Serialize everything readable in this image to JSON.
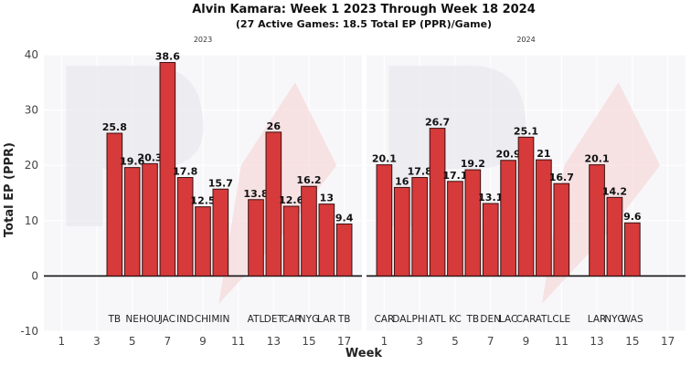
{
  "chart_data": {
    "type": "bar",
    "title": "Alvin Kamara: Week 1 2023 Through Week 18 2024",
    "subtitle": "(27 Active Games: 18.5 Total EP (PPR)/Game)",
    "xlabel": "Week",
    "ylabel": "Total EP (PPR)",
    "ylim": [
      -10,
      40
    ],
    "yticks": [
      -10,
      0,
      10,
      20,
      30,
      40
    ],
    "xlim": [
      0,
      18
    ],
    "xticks": [
      1,
      3,
      5,
      7,
      9,
      11,
      13,
      15,
      17
    ],
    "grid": true,
    "bar_color": "#d63a3a",
    "bar_edge": "#3a1010",
    "panel_bg": "#f7f7fa",
    "panels": [
      {
        "label": "2023",
        "weeks": [
          4,
          5,
          6,
          7,
          8,
          9,
          10,
          12,
          13,
          14,
          15,
          16,
          17
        ],
        "opponents": [
          "TB",
          "NE",
          "HOU",
          "JAC",
          "IND",
          "CHI",
          "MIN",
          "ATL",
          "DET",
          "CAR",
          "NYG",
          "LAR",
          "TB"
        ],
        "values": [
          25.8,
          19.6,
          20.3,
          38.6,
          17.8,
          12.5,
          15.7,
          13.8,
          26,
          12.6,
          16.2,
          13,
          9.4
        ]
      },
      {
        "label": "2024",
        "weeks": [
          1,
          2,
          3,
          4,
          5,
          6,
          7,
          8,
          9,
          10,
          11,
          13,
          14,
          15
        ],
        "opponents": [
          "CAR",
          "DAL",
          "PHI",
          "ATL",
          "KC",
          "TB",
          "DEN",
          "LAC",
          "CAR",
          "ATL",
          "CLE",
          "LAR",
          "NYG",
          "WAS"
        ],
        "values": [
          20.1,
          16,
          17.8,
          26.7,
          17.1,
          19.2,
          13.1,
          20.9,
          25.1,
          21,
          16.7,
          20.1,
          14.2,
          9.6
        ]
      }
    ]
  }
}
